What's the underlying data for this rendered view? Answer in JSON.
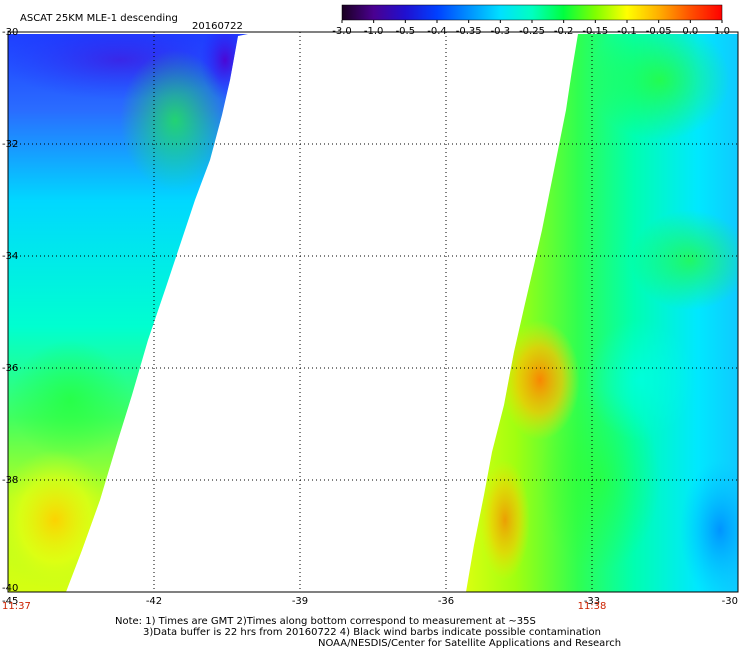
{
  "header": {
    "product": "ASCAT 25KM MLE-1 descending",
    "date": "20160722"
  },
  "colorbar": {
    "ticks": [
      "-3.0",
      "-1.0",
      "-0.5",
      "-0.4",
      "-0.35",
      "-0.3",
      "-0.25",
      "-0.2",
      "-0.15",
      "-0.1",
      "-0.05",
      "0.0",
      "1.0"
    ],
    "colors": [
      "#1a0020",
      "#4a0090",
      "#2010d0",
      "#0040ff",
      "#0090ff",
      "#00e0ff",
      "#00ffc0",
      "#00ff40",
      "#80ff00",
      "#ffff00",
      "#ffb000",
      "#ff5000",
      "#ff0000"
    ]
  },
  "map": {
    "lon_ticks": [
      "-45",
      "-42",
      "-39",
      "-36",
      "-33",
      "-30"
    ],
    "lat_ticks": [
      "-30",
      "-32",
      "-34",
      "-36",
      "-38",
      "-40"
    ],
    "lon_range": [
      -45,
      -30
    ],
    "lat_range": [
      -30,
      -40
    ],
    "pass_times": [
      {
        "lon": -45,
        "text": "11:37"
      },
      {
        "lon": -33,
        "text": "11:38"
      }
    ]
  },
  "notes": {
    "line1": "Note: 1) Times are GMT 2)Times along bottom correspond to measurement at ~35S",
    "line2": "3)Data buffer is 22 hrs from 20160722 4) Black wind barbs indicate possible contamination",
    "line3": "NOAA/NESDIS/Center for Satellite Applications and Research"
  }
}
